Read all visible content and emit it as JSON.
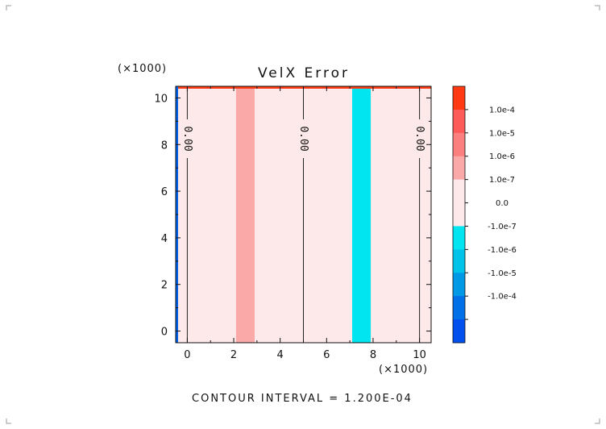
{
  "chart_data": {
    "type": "heatmap",
    "title": "VelX Error",
    "x_multiplier_label": "(×1000)",
    "y_multiplier_label": "(×1000)",
    "xlim": [
      -0.5,
      10.5
    ],
    "ylim": [
      -0.5,
      10.5
    ],
    "x_ticks": [
      0,
      2,
      4,
      6,
      8,
      10
    ],
    "y_ticks": [
      0,
      2,
      4,
      6,
      8,
      10
    ],
    "x_tick_labels": [
      "0",
      "2",
      "4",
      "6",
      "8",
      "10"
    ],
    "y_tick_labels": [
      "0",
      "2",
      "4",
      "6",
      "8",
      "10"
    ],
    "grid": false,
    "background_level": "0.0",
    "bands": [
      {
        "x_start": 2.1,
        "x_end": 2.9,
        "level": "1.0e-6",
        "color": "#fba8a8"
      },
      {
        "x_start": 7.1,
        "x_end": 7.9,
        "level": "-1.0e-7",
        "color": "#00e5f0"
      }
    ],
    "contour_lines": [
      {
        "x": 0.0,
        "label": "0.00"
      },
      {
        "x": 5.0,
        "label": "0.00"
      },
      {
        "x": 10.0,
        "label": "0.00"
      }
    ],
    "colorbar": {
      "levels": [
        {
          "label": "",
          "color": "#ff3a12"
        },
        {
          "label": "1.0e-4",
          "color": "#fd5a5a"
        },
        {
          "label": "1.0e-5",
          "color": "#fb7f7f"
        },
        {
          "label": "1.0e-6",
          "color": "#fba8a8"
        },
        {
          "label": "1.0e-7",
          "color": "#fde9e9"
        },
        {
          "label": "0.0",
          "color": "#fde9e9"
        },
        {
          "label": "-1.0e-7",
          "color": "#00e5f0"
        },
        {
          "label": "-1.0e-6",
          "color": "#00c3ea"
        },
        {
          "label": "-1.0e-5",
          "color": "#0099e6"
        },
        {
          "label": "-1.0e-4",
          "color": "#0070e8"
        },
        {
          "label": "",
          "color": "#0050ee"
        }
      ]
    },
    "footer": "CONTOUR INTERVAL = 1.200E-04"
  },
  "colors": {
    "background_field": "#fde9e9",
    "top_edge": "#ff3a12",
    "left_edge": "#0060e8",
    "axis": "#111111"
  }
}
